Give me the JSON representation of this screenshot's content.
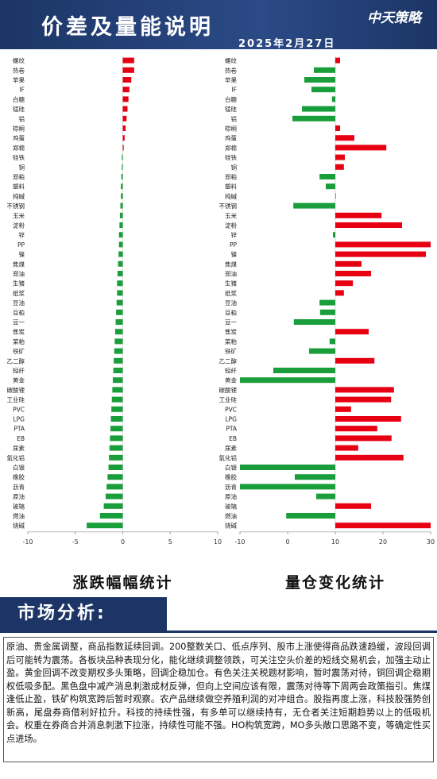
{
  "header": {
    "title": "价差及量能说明",
    "date": "2025年2月27日",
    "logo": "中天策略"
  },
  "chart_data": [
    {
      "type": "bar",
      "orientation": "horizontal",
      "title": "涨跌幅幅统计",
      "categories": [
        "螺纹",
        "热卷",
        "苹果",
        "IF",
        "白糖",
        "锰硅",
        "铝",
        "棕榈",
        "鸡蛋",
        "郑棉",
        "硅铁",
        "铜",
        "郑粕",
        "塑料",
        "纯碱",
        "不锈钢",
        "玉米",
        "淀粉",
        "锌",
        "PP",
        "镍",
        "焦煤",
        "郑油",
        "生猪",
        "纸浆",
        "豆油",
        "豆粕",
        "豆一",
        "焦炭",
        "菜粕",
        "铁矿",
        "乙二醇",
        "短纤",
        "黄金",
        "碳酸锂",
        "工业硅",
        "PVC",
        "LPG",
        "PTA",
        "EB",
        "尿素",
        "氧化铝",
        "白银",
        "橡胶",
        "沥青",
        "原油",
        "玻璃",
        "燃油",
        "烧碱"
      ],
      "values": [
        1.2,
        1.2,
        0.9,
        0.7,
        0.6,
        0.5,
        0.4,
        0.3,
        0.2,
        0.1,
        -0.1,
        -0.1,
        -0.15,
        -0.2,
        -0.2,
        -0.25,
        -0.3,
        -0.35,
        -0.4,
        -0.4,
        -0.45,
        -0.5,
        -0.55,
        -0.6,
        -0.6,
        -0.65,
        -0.7,
        -0.75,
        -0.8,
        -0.85,
        -0.9,
        -0.95,
        -1.0,
        -1.05,
        -1.1,
        -1.15,
        -1.2,
        -1.25,
        -1.3,
        -1.35,
        -1.4,
        -1.45,
        -1.5,
        -1.6,
        -1.7,
        -1.8,
        -2.0,
        -2.4,
        -3.8
      ],
      "xlim": [
        -10,
        10
      ],
      "xticks": [
        -10,
        -5,
        0,
        5,
        10
      ],
      "bar_base": 0,
      "colors": {
        "positive": "#e60012",
        "negative": "#1a9e3c"
      }
    },
    {
      "type": "bar",
      "orientation": "horizontal",
      "title": "量仓变化统计",
      "categories": [
        "螺纹",
        "热卷",
        "苹果",
        "IF",
        "白糖",
        "锰硅",
        "铝",
        "棕榈",
        "鸡蛋",
        "郑棉",
        "硅铁",
        "铜",
        "郑粕",
        "塑料",
        "纯碱",
        "不锈钢",
        "玉米",
        "淀粉",
        "锌",
        "PP",
        "镍",
        "焦煤",
        "郑油",
        "生猪",
        "纸浆",
        "豆油",
        "豆粕",
        "豆一",
        "焦炭",
        "菜粕",
        "铁矿",
        "乙二醇",
        "短纤",
        "黄金",
        "碳酸锂",
        "工业硅",
        "PVC",
        "LPG",
        "PTA",
        "EB",
        "尿素",
        "氧化铝",
        "白银",
        "橡胶",
        "沥青",
        "原油",
        "玻璃",
        "燃油",
        "烧碱"
      ],
      "values": [
        11,
        5.5,
        3.5,
        5,
        9.3,
        3,
        1,
        11,
        14,
        20.7,
        12,
        11.8,
        6.7,
        8,
        10,
        1.2,
        19.7,
        24,
        9.5,
        30,
        29,
        15.5,
        17.5,
        13.7,
        11.8,
        6.7,
        6.8,
        1.3,
        17,
        8.8,
        4.5,
        18.2,
        -3,
        -10,
        22.3,
        21.7,
        13.3,
        23.8,
        18.8,
        21.8,
        14.8,
        24.3,
        -10,
        1.5,
        -10,
        6,
        17.5,
        -0.3,
        30
      ],
      "xlim": [
        -10,
        30
      ],
      "xticks": [
        -10,
        0,
        10,
        20,
        30
      ],
      "bar_base": 10,
      "colors": {
        "positive": "#e60012",
        "negative": "#1a9e3c"
      }
    }
  ],
  "analysis": {
    "heading": "市场分析:",
    "text": "原油、贵金属调整，商品指数延续回调。200整数关口、低点序列、股市上涨使得商品跌速趋缓，波段回调后可能转为震荡。各板块品种表现分化，能化继续调整领跌，可关注空头价差的短线交易机会，加强主动止盈。黄金回调不改变期权多头策略，回调企稳加仓。有色关注关税题材影响，暂时震荡对待，铜回调企稳期权低吸多配。黑色盘中减产消息刺激成材反弹，但向上空间应该有限，震荡对待等下周两会政策指引。焦煤逢低止盈，铁矿构筑宽跨后暂时观察。农产品继续做空养殖利润的对冲组合。股指再度上涨，科技股强势创新高，尾盘券商借利好拉升。科技的持续性强，有多单可以继续持有，无仓者关注短期趋势以上的低吸机会。权重在券商合并消息刺激下拉涨，持续性可能不强。HO构筑宽跨，MO多头敞口思路不变，等确定性买点进场。"
  }
}
